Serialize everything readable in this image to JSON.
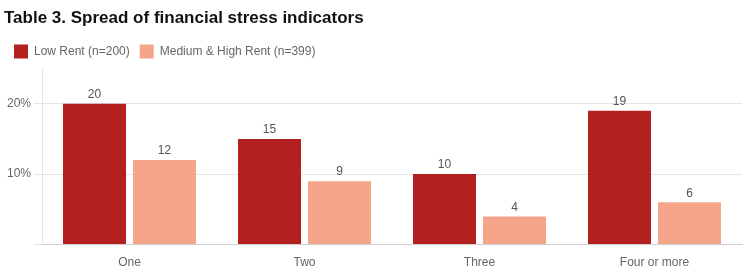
{
  "chart_data": {
    "type": "bar",
    "title": "Table 3. Spread of financial stress indicators",
    "categories": [
      "One",
      "Two",
      "Three",
      "Four or more"
    ],
    "series": [
      {
        "name": "Low Rent (n=200)",
        "color": "#B22020",
        "values": [
          20,
          15,
          10,
          19
        ]
      },
      {
        "name": "Medium & High Rent (n=399)",
        "color": "#F4A58A",
        "values": [
          12,
          9,
          4,
          6
        ]
      }
    ],
    "ylim": [
      0,
      25
    ],
    "yticks": [
      {
        "value": 0,
        "label": ""
      },
      {
        "value": 10,
        "label": "10%"
      },
      {
        "value": 20,
        "label": "20%"
      }
    ],
    "grid": true,
    "legend": "upper left",
    "data_labels": true
  }
}
